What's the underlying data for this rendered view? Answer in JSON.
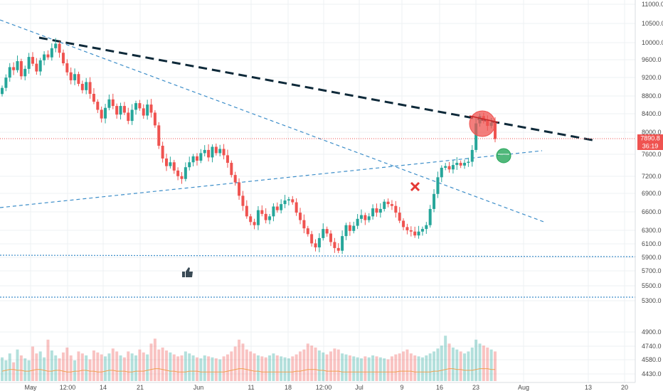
{
  "chart_data": {
    "type": "candlestick",
    "price_axis": {
      "ticks": [
        "11000.0",
        "10500.0",
        "10000.0",
        "9600.0",
        "9200.0",
        "8800.0",
        "8400.0",
        "8000.0",
        "7600.0",
        "7200.0",
        "6900.0",
        "6600.0",
        "6300.0",
        "6100.0",
        "5900.0",
        "5700.0",
        "5500.0",
        "5300.0",
        "4900.0",
        "4740.0",
        "4580.0",
        "4430.0"
      ],
      "values": [
        11000,
        10500,
        10000,
        9600,
        9200,
        8800,
        8400,
        8000,
        7600,
        7200,
        6900,
        6600,
        6300,
        6100,
        5900,
        5700,
        5500,
        5300,
        4900,
        4740,
        4580,
        4430
      ],
      "scale": "log"
    },
    "time_axis": {
      "ticks": [
        "May",
        "12:00",
        "14",
        "21",
        "Jun",
        "11",
        "18",
        "12:00",
        "Jul",
        "9",
        "16",
        "23",
        "Aug",
        "13",
        "20"
      ]
    },
    "last_price": {
      "label": "7890.8",
      "value": 7890.8,
      "countdown": "36:19",
      "color": "#ef5350"
    },
    "colors": {
      "up": "#26a69a",
      "down": "#ef5350",
      "trendline_dark": "#0f2a3a",
      "trendline_blue": "#3d8ec9",
      "support": "#3d8ec9"
    },
    "series": [
      {
        "values": [
          8950,
          9180,
          9420,
          9350,
          9560,
          9210,
          9380,
          9660,
          9500,
          9320,
          9580,
          9720,
          9650,
          9870,
          9980,
          9760,
          9510,
          9300,
          9120,
          9260,
          9040,
          8900,
          9080,
          8820,
          8650,
          8480,
          8300,
          8520,
          8700,
          8560,
          8380,
          8560,
          8420,
          8250,
          8480,
          8620,
          8510,
          8360,
          8590,
          8420,
          8160,
          7760,
          7520,
          7380,
          7450,
          7300,
          7200,
          7150,
          7360,
          7450,
          7560,
          7480,
          7620,
          7680,
          7540,
          7740,
          7620,
          7700,
          7580,
          7440,
          7220,
          7090,
          6860,
          6690,
          6520,
          6430,
          6380,
          6620,
          6560,
          6460,
          6520,
          6680,
          6620,
          6720,
          6780,
          6800,
          6750,
          6580,
          6460,
          6330,
          6240,
          6100,
          6040,
          6180,
          6320,
          6250,
          6120,
          6030,
          5990,
          6210,
          6380,
          6290,
          6370,
          6480,
          6540,
          6460,
          6520,
          6650,
          6580,
          6640,
          6760,
          6720,
          6690,
          6580,
          6450,
          6350,
          6300,
          6280,
          6220,
          6280,
          6320,
          6380,
          6640,
          6890,
          7180,
          7350,
          7380,
          7320,
          7400,
          7440,
          7390,
          7440,
          7460,
          7680,
          8200,
          8350,
          8280,
          8150,
          8210,
          7890
        ]
      }
    ],
    "volume": [
      240,
      210,
      280,
      190,
      320,
      260,
      230,
      210,
      350,
      280,
      300,
      240,
      420,
      310,
      260,
      230,
      290,
      340,
      260,
      210,
      300,
      280,
      260,
      220,
      310,
      290,
      270,
      250,
      280,
      330,
      300,
      260,
      240,
      300,
      280,
      260,
      320,
      290,
      270,
      380,
      430,
      320,
      340,
      310,
      290,
      270,
      250,
      260,
      300,
      280,
      260,
      240,
      230,
      260,
      250,
      240,
      230,
      220,
      250,
      270,
      300,
      350,
      420,
      380,
      320,
      300,
      280,
      260,
      250,
      240,
      260,
      280,
      260,
      250,
      240,
      230,
      250,
      270,
      300,
      320,
      380,
      360,
      340,
      310,
      290,
      270,
      300,
      330,
      320,
      280,
      270,
      260,
      250,
      240,
      230,
      250,
      240,
      260,
      250,
      240,
      230,
      220,
      250,
      270,
      280,
      300,
      320,
      280,
      260,
      250,
      240,
      260,
      280,
      300,
      330,
      360,
      460,
      380,
      340,
      320,
      300,
      280,
      300,
      340,
      420,
      380,
      360,
      340,
      320,
      300
    ],
    "volume_ma": [
      0.12,
      0.13,
      0.14,
      0.14,
      0.13,
      0.13,
      0.12,
      0.12,
      0.13,
      0.14,
      0.14,
      0.13,
      0.12,
      0.12,
      0.13,
      0.13,
      0.12,
      0.11,
      0.11,
      0.12,
      0.12,
      0.13,
      0.13,
      0.12,
      0.12,
      0.11,
      0.11,
      0.12,
      0.13,
      0.13,
      0.12,
      0.12,
      0.12,
      0.11,
      0.11,
      0.12,
      0.12,
      0.12,
      0.13,
      0.14,
      0.15,
      0.15,
      0.14,
      0.13,
      0.12,
      0.12,
      0.11,
      0.11,
      0.11,
      0.12,
      0.12,
      0.12,
      0.11,
      0.11,
      0.11,
      0.11,
      0.11,
      0.11,
      0.11,
      0.12,
      0.13,
      0.14,
      0.15,
      0.15,
      0.14,
      0.13,
      0.12,
      0.12,
      0.11,
      0.11,
      0.11,
      0.11,
      0.11,
      0.11,
      0.11,
      0.11,
      0.11,
      0.12,
      0.12,
      0.13,
      0.14,
      0.14,
      0.14,
      0.13,
      0.13,
      0.12,
      0.12,
      0.12,
      0.12,
      0.11,
      0.11,
      0.11,
      0.11,
      0.11,
      0.11,
      0.11,
      0.11,
      0.11,
      0.11,
      0.11,
      0.11,
      0.11,
      0.11,
      0.11,
      0.12,
      0.12,
      0.12,
      0.12,
      0.11,
      0.11,
      0.11,
      0.11,
      0.11,
      0.12,
      0.12,
      0.13,
      0.14,
      0.15,
      0.15,
      0.14,
      0.14,
      0.13,
      0.13,
      0.13,
      0.14,
      0.15,
      0.15,
      0.15,
      0.14,
      0.14
    ]
  }
}
